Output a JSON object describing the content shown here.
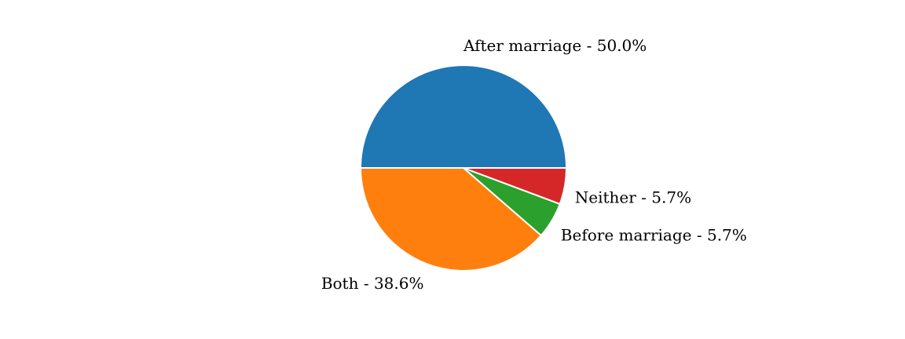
{
  "chart_data": {
    "type": "pie",
    "slices": [
      {
        "label": "After marriage",
        "value": 50.0,
        "pct_label": "50.0%",
        "color": "#1f77b4"
      },
      {
        "label": "Both",
        "value": 38.6,
        "pct_label": "38.6%",
        "color": "#ff7f0e"
      },
      {
        "label": "Before marriage",
        "value": 5.7,
        "pct_label": "5.7%",
        "color": "#2ca02c"
      },
      {
        "label": "Neither",
        "value": 5.7,
        "pct_label": "5.7%",
        "color": "#d62728"
      }
    ],
    "start_angle_deg": 0,
    "direction": "counterclockwise",
    "label_separator": "  -  ",
    "legend": "none"
  }
}
